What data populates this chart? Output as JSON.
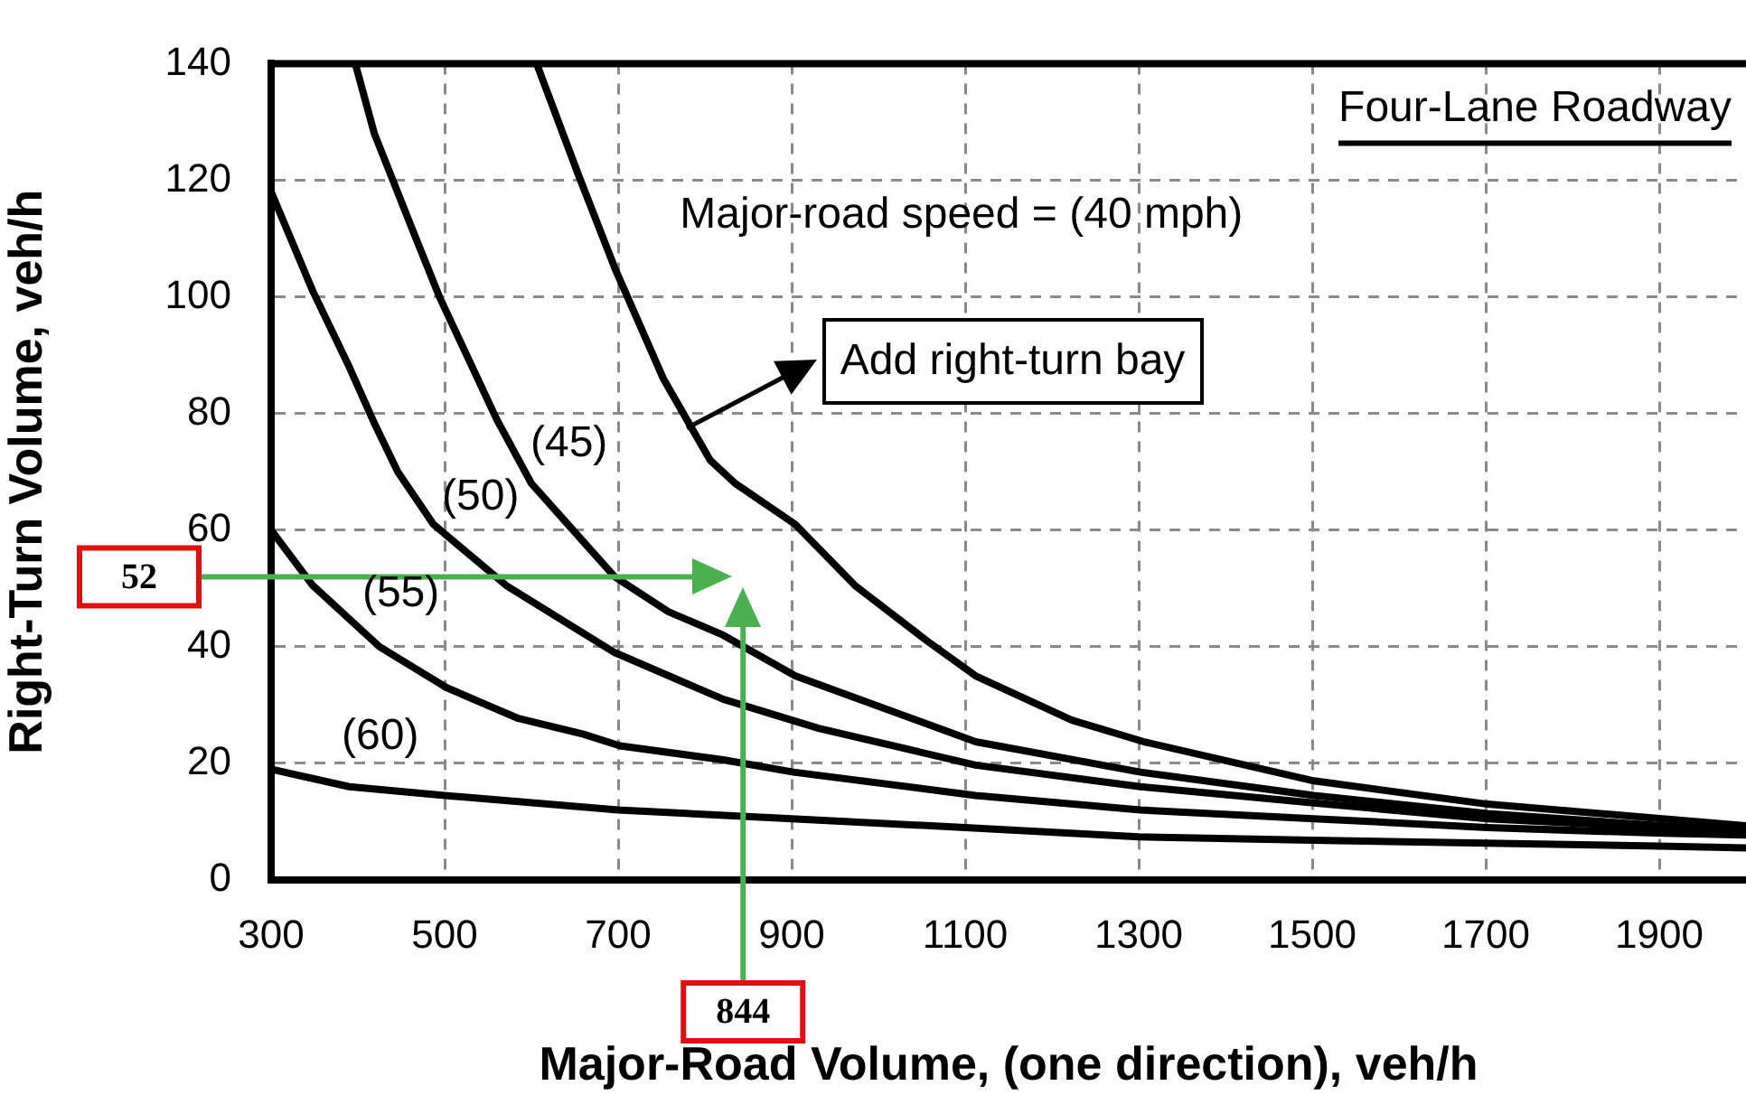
{
  "chart_data": {
    "type": "line",
    "title": "Four-Lane Roadway",
    "xlabel": "Major-Road Volume, (one direction), veh/h",
    "ylabel": "Right-Turn Volume, veh/h",
    "xlim": [
      300,
      2000
    ],
    "xticks": [
      300,
      500,
      700,
      900,
      1100,
      1300,
      1500,
      1700,
      1900
    ],
    "ylim": [
      0,
      140
    ],
    "yticks": [
      0,
      20,
      40,
      60,
      80,
      100,
      120,
      140
    ],
    "grid": true,
    "marker": "none",
    "line_style": "solid",
    "series": [
      {
        "color": "#000000",
        "x": [
          606,
          654,
          696,
          752,
          806,
          835,
          904,
          973,
          1056,
          1112,
          1223,
          1306,
          1502,
          1702,
          1904,
          2000
        ],
        "values": [
          140,
          121,
          105,
          86,
          72,
          68,
          61,
          50.5,
          41,
          35,
          27.4,
          23.7,
          17,
          13,
          10.5,
          9.3
        ]
      },
      {
        "color": "#000000",
        "x": [
          397,
          419,
          467,
          494,
          560,
          600,
          648,
          696,
          758,
          821,
          904,
          1112,
          1302,
          1502,
          1702,
          1904,
          2000
        ],
        "values": [
          140,
          128,
          110,
          100,
          79,
          68,
          60,
          52,
          46,
          42,
          35,
          23.7,
          18.5,
          14.5,
          11.4,
          9.3,
          8.3
        ]
      },
      {
        "color": "#000000",
        "x": [
          300,
          348,
          390,
          420,
          446,
          487,
          571,
          696,
          821,
          931,
          1112,
          1302,
          1502,
          1702,
          1904,
          2000
        ],
        "values": [
          118,
          101,
          88,
          78,
          70,
          61,
          50.5,
          39,
          31,
          26,
          19.7,
          16,
          13.2,
          10.5,
          9,
          8
        ]
      },
      {
        "color": "#000000",
        "x": [
          300,
          348,
          425,
          502,
          585,
          660,
          702,
          821,
          902,
          1112,
          1302,
          1502,
          1702,
          1904,
          2000
        ],
        "values": [
          60,
          50.5,
          40,
          33,
          27.7,
          25,
          23,
          20.6,
          18.5,
          14.5,
          12,
          10.5,
          9,
          8,
          7.7
        ]
      },
      {
        "color": "#000000",
        "x": [
          300,
          390,
          500,
          700,
          900,
          1100,
          1300,
          1500,
          1900,
          2000
        ],
        "values": [
          19,
          16,
          14.5,
          12,
          10.5,
          9,
          7.4,
          6.8,
          5.8,
          5.5
        ]
      }
    ],
    "annotations": [
      "Major-road speed = (40 mph)",
      {
        "text": "Add right-turn bay",
        "x": 779,
        "y": 77.5
      },
      "(45)",
      "(50)",
      "(55)",
      "(60)"
    ],
    "ref_lines": [
      {
        "axis": "y",
        "value": 52,
        "label": "52",
        "color": "#4caf50"
      },
      {
        "axis": "x",
        "value": 844,
        "label": "844",
        "color": "#4caf50"
      }
    ]
  }
}
